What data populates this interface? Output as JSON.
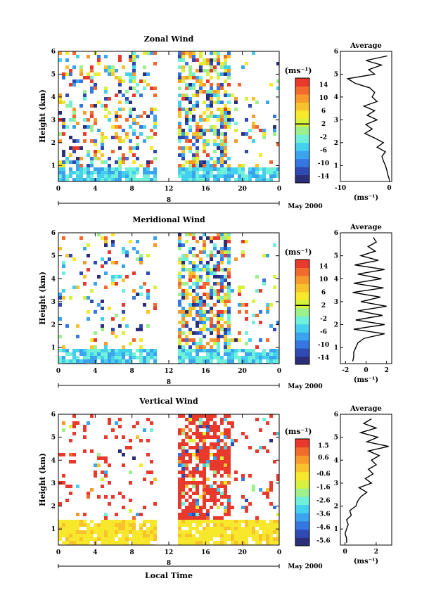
{
  "figure": {
    "time_axis_label": "Local Time",
    "date_label": "May 2000",
    "day_label": "8",
    "height_label": "Height (km)",
    "unit_label": "(ms⁻¹)",
    "average_title": "Average"
  },
  "chart_data": [
    {
      "type": "heatmap",
      "title": "Zonal Wind",
      "xlabel": "",
      "ylabel": "Height (km)",
      "xlim": [
        0,
        24
      ],
      "ylim": [
        0.3,
        6
      ],
      "x_ticks": [
        "0",
        "4",
        "8",
        "12",
        "16",
        "20",
        "0"
      ],
      "y_ticks": [
        "1",
        "2",
        "3",
        "4",
        "5",
        "6"
      ],
      "data_gap_hours": [
        10.8,
        12.9
      ],
      "colorbar": {
        "unit": "(ms⁻¹)",
        "ticks": [
          "14",
          "10",
          "6",
          "2",
          "-2",
          "-6",
          "-10",
          "-14"
        ],
        "range": [
          -16,
          16
        ],
        "marked_level": 2
      },
      "profile": {
        "title": "Average",
        "xlabel": "(ms⁻¹)",
        "x_ticks": [
          "-10",
          "0"
        ],
        "xlim": [
          -10,
          0.5
        ],
        "heights": [
          0.4,
          0.6,
          0.8,
          1.0,
          1.2,
          1.4,
          1.6,
          1.8,
          2.0,
          2.2,
          2.4,
          2.6,
          2.8,
          3.0,
          3.2,
          3.4,
          3.6,
          3.8,
          4.0,
          4.2,
          4.4,
          4.6,
          4.8,
          5.0,
          5.2,
          5.4,
          5.6,
          5.8
        ],
        "values": [
          0,
          -0.3,
          -0.5,
          -0.8,
          -1.2,
          -1.5,
          -0.8,
          -2.5,
          -1.2,
          -3,
          -5,
          -3.5,
          -4.8,
          -2.5,
          -4.5,
          -3,
          -5.2,
          -2.5,
          -3.5,
          -3,
          -4,
          -7,
          -8.5,
          -3,
          -4.2,
          -1.6,
          -4.8,
          -0.4
        ]
      }
    },
    {
      "type": "heatmap",
      "title": "Meridional Wind",
      "xlabel": "",
      "ylabel": "Height (km)",
      "xlim": [
        0,
        24
      ],
      "ylim": [
        0.3,
        6
      ],
      "x_ticks": [
        "0",
        "4",
        "8",
        "12",
        "16",
        "20",
        "0"
      ],
      "y_ticks": [
        "1",
        "2",
        "3",
        "4",
        "5",
        "6"
      ],
      "data_gap_hours": [
        10.8,
        12.9
      ],
      "colorbar": {
        "unit": "(ms⁻¹)",
        "ticks": [
          "14",
          "10",
          "6",
          "2",
          "-2",
          "-6",
          "-10",
          "-14"
        ],
        "range": [
          -16,
          16
        ],
        "marked_level": 2
      },
      "profile": {
        "title": "Average",
        "xlabel": "(ms⁻¹)",
        "x_ticks": [
          "-2",
          "0",
          "2"
        ],
        "xlim": [
          -2.5,
          2.5
        ],
        "heights": [
          0.4,
          0.6,
          0.8,
          1.0,
          1.2,
          1.4,
          1.6,
          1.8,
          2.0,
          2.2,
          2.4,
          2.6,
          2.8,
          3.0,
          3.2,
          3.4,
          3.6,
          3.8,
          4.0,
          4.2,
          4.4,
          4.6,
          4.8,
          5.0,
          5.2,
          5.4,
          5.6,
          5.8
        ],
        "values": [
          -1.3,
          -1.2,
          -1.2,
          -1.0,
          -0.8,
          -0.2,
          1.8,
          -1.2,
          1.8,
          -1.0,
          1.6,
          -0.8,
          2.0,
          -0.5,
          1.4,
          -1.3,
          1.7,
          -1.2,
          1.5,
          -0.8,
          1.8,
          -1.1,
          1.2,
          -0.5,
          0.9,
          0.2,
          1.0,
          0.7
        ]
      }
    },
    {
      "type": "heatmap",
      "title": "Vertical Wind",
      "xlabel": "Local Time",
      "ylabel": "Height (km)",
      "xlim": [
        0,
        24
      ],
      "ylim": [
        0.3,
        6
      ],
      "x_ticks": [
        "0",
        "4",
        "8",
        "12",
        "16",
        "20",
        "0"
      ],
      "y_ticks": [
        "1",
        "2",
        "3",
        "4",
        "5",
        "6"
      ],
      "data_gap_hours": [
        10.8,
        12.9
      ],
      "colorbar": {
        "unit": "(ms⁻¹)",
        "ticks": [
          "1.5",
          "0.6",
          "-0.6",
          "-1.6",
          "-2.6",
          "-3.6",
          "-4.6",
          "-5.6"
        ],
        "range": [
          -6,
          2
        ],
        "marked_level": null
      },
      "profile": {
        "title": "Average",
        "xlabel": "(ms⁻¹)",
        "x_ticks": [
          "0",
          "2"
        ],
        "xlim": [
          -0.3,
          3
        ],
        "heights": [
          0.4,
          0.6,
          0.8,
          1.0,
          1.2,
          1.4,
          1.6,
          1.8,
          2.0,
          2.2,
          2.4,
          2.6,
          2.8,
          3.0,
          3.2,
          3.4,
          3.6,
          3.8,
          4.0,
          4.2,
          4.4,
          4.6,
          4.8,
          5.0,
          5.2,
          5.4,
          5.6,
          5.8
        ],
        "values": [
          0.1,
          0.1,
          0,
          0.1,
          0.2,
          0.1,
          0.4,
          0.3,
          0.7,
          0.8,
          1.0,
          1.4,
          0.9,
          1.7,
          1.3,
          1.8,
          1.5,
          2.0,
          1.7,
          2.2,
          1.5,
          2.8,
          1.4,
          2.1,
          1.0,
          2.0,
          1.2,
          1.7
        ]
      }
    }
  ]
}
